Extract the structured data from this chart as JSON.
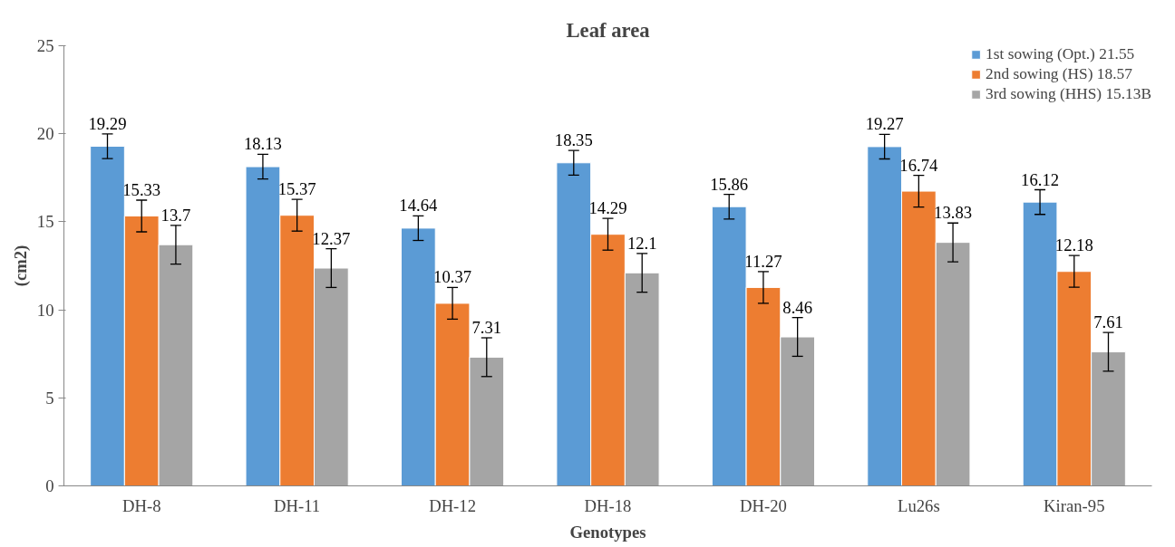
{
  "chart_data": {
    "type": "bar",
    "title": "Leaf area",
    "xlabel": "Genotypes",
    "ylabel": "(cm2)",
    "categories": [
      "DH-8",
      "DH-11",
      "DH-12",
      "DH-18",
      "DH-20",
      "Lu26s",
      "Kiran-95"
    ],
    "series": [
      {
        "name": "1st sowing (Opt.) 21.55",
        "color": "#5b9bd5",
        "values": [
          19.29,
          18.13,
          14.64,
          18.35,
          15.86,
          19.27,
          16.12
        ],
        "errors": [
          0.7,
          0.7,
          0.7,
          0.7,
          0.7,
          0.7,
          0.7
        ]
      },
      {
        "name": "2nd sowing (HS) 18.57",
        "color": "#ed7d31",
        "values": [
          15.33,
          15.37,
          10.37,
          14.29,
          11.27,
          16.74,
          12.18
        ],
        "errors": [
          0.9,
          0.9,
          0.9,
          0.9,
          0.9,
          0.9,
          0.9
        ]
      },
      {
        "name": "3rd sowing (HHS) 15.13B",
        "color": "#a5a5a5",
        "values": [
          13.7,
          12.37,
          7.31,
          12.1,
          8.46,
          13.83,
          7.61
        ],
        "errors": [
          1.1,
          1.1,
          1.1,
          1.1,
          1.1,
          1.1,
          1.1
        ]
      }
    ],
    "ylim": [
      0,
      25
    ],
    "yticks": [
      0,
      5,
      10,
      15,
      20,
      25
    ],
    "grid": false,
    "legend": "top right",
    "data_labels": true
  }
}
